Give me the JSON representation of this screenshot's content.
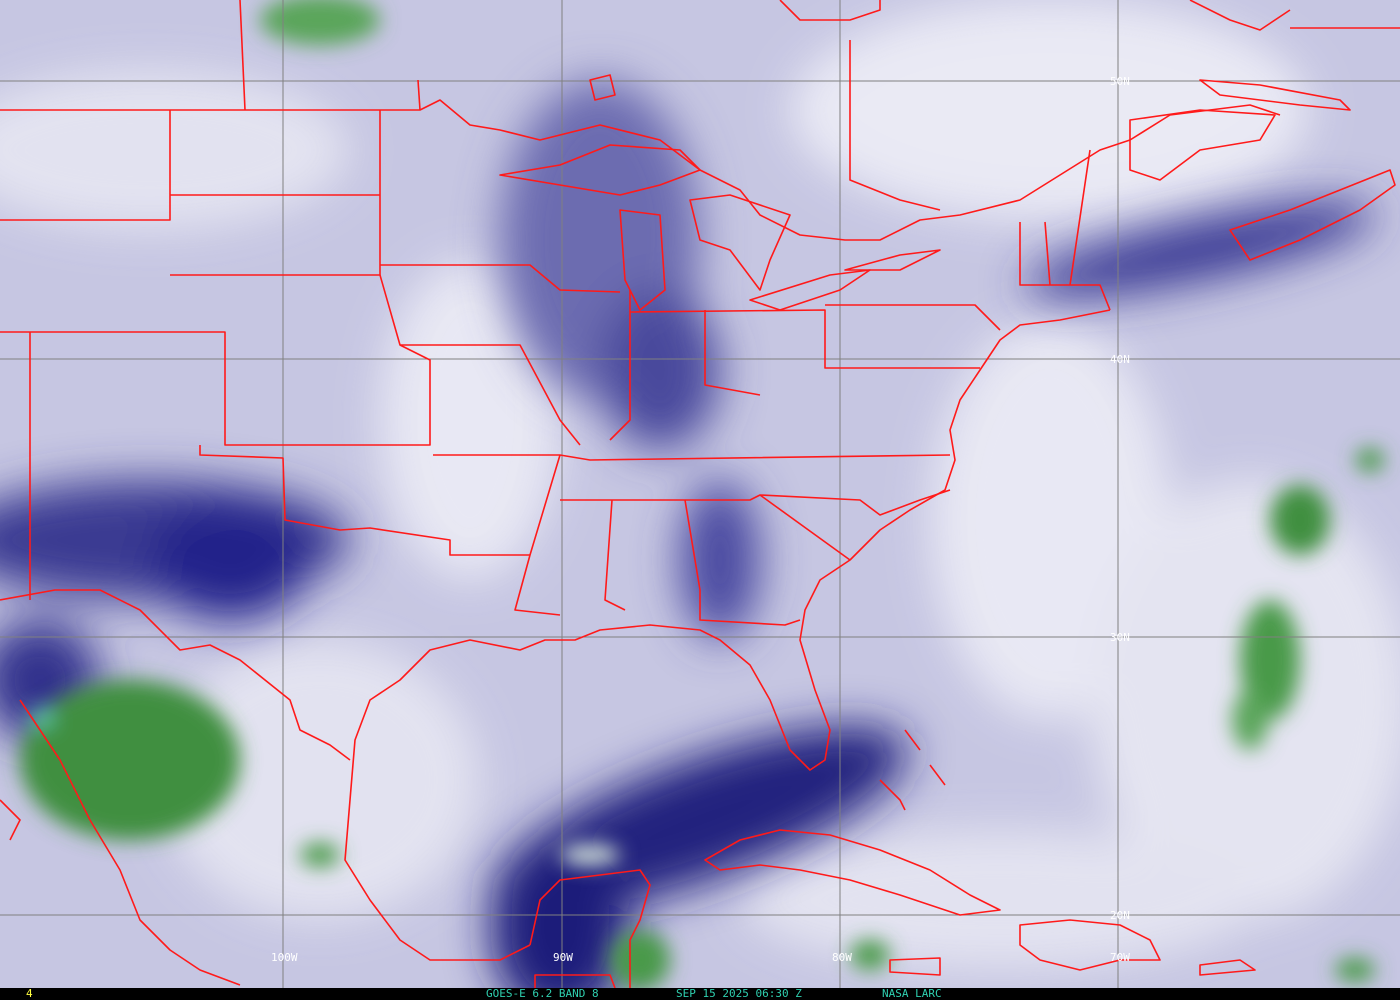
{
  "image": {
    "kind": "water-vapor satellite imagery",
    "colors": {
      "background": "#c6c6e2",
      "dry": "#1a1a7a",
      "moist": "#f2f2f8",
      "cloud": "#3f8f3f",
      "borders": "#ff1a1a",
      "grid": "#808080",
      "footer_text": "#2fd0b0",
      "frame_number": "#ffff40"
    }
  },
  "grid": {
    "lat_labels": [
      "50N",
      "40N",
      "30N",
      "20N"
    ],
    "lon_labels": [
      "100W",
      "90W",
      "80W",
      "70W"
    ]
  },
  "footer": {
    "frame_number": "4",
    "product": "GOES-E 6.2 BAND 8",
    "timestamp": "SEP 15 2025 06:30 Z",
    "credit": "NASA LARC"
  }
}
